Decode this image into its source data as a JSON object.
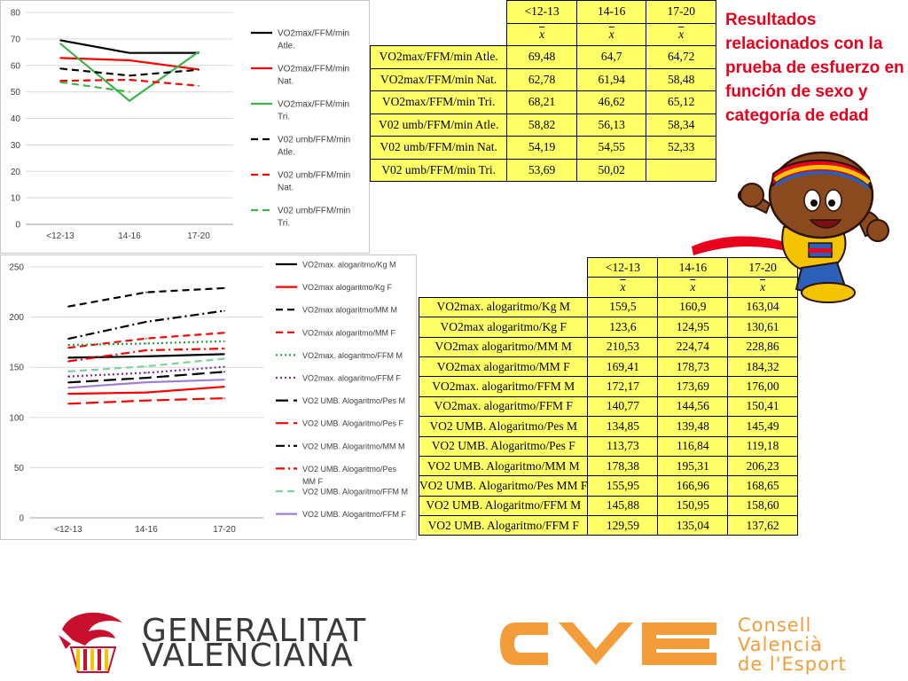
{
  "headline": "Resultados relacionados con la prueba de esfuerzo en función de sexo y categoría de edad",
  "xbar_symbol": "x",
  "colors": {
    "header_fill": "#ffff66",
    "headline": "#e8001c",
    "cve_orange": "#f39c3a"
  },
  "chart_data": [
    {
      "type": "line",
      "categories": [
        "<12-13",
        "14-16",
        "17-20"
      ],
      "ylim": [
        0,
        80
      ],
      "yticks": [
        "0",
        "10",
        "20",
        "30",
        "40",
        "50",
        "60",
        "70",
        "80"
      ],
      "grid": true,
      "legend_position": "right",
      "series": [
        {
          "name": "VO2max/FFM/min Atle.",
          "values": [
            69.48,
            64.7,
            64.72
          ],
          "color": "#000000",
          "dash": "solid"
        },
        {
          "name": "VO2max/FFM/min Nat.",
          "values": [
            62.78,
            61.94,
            58.48
          ],
          "color": "#ff0000",
          "dash": "solid"
        },
        {
          "name": "VO2max/FFM/min Tri.",
          "values": [
            68.21,
            46.62,
            65.12
          ],
          "color": "#3cb44b",
          "dash": "solid"
        },
        {
          "name": "V02 umb/FFM/min Atle.",
          "values": [
            58.82,
            56.13,
            58.34
          ],
          "color": "#000000",
          "dash": "dash"
        },
        {
          "name": "V02 umb/FFM/min Nat.",
          "values": [
            54.19,
            54.55,
            52.33
          ],
          "color": "#ff0000",
          "dash": "dash"
        },
        {
          "name": "V02 umb/FFM/min Tri.",
          "values": [
            53.69,
            50.02,
            null
          ],
          "color": "#3cb44b",
          "dash": "dash"
        }
      ]
    },
    {
      "type": "line",
      "categories": [
        "<12-13",
        "14-16",
        "17-20"
      ],
      "ylim": [
        0,
        250
      ],
      "yticks": [
        "0",
        "50",
        "100",
        "150",
        "200",
        "250"
      ],
      "grid": true,
      "legend_position": "right",
      "series": [
        {
          "name": "VO2max. alogaritmo/Kg M",
          "values": [
            159.5,
            160.9,
            163.04
          ],
          "color": "#000000",
          "dash": "solid"
        },
        {
          "name": "VO2max alogaritmo/Kg F",
          "values": [
            123.6,
            124.95,
            130.61
          ],
          "color": "#ff0000",
          "dash": "solid"
        },
        {
          "name": "VO2max alogaritmo/MM M",
          "values": [
            210.53,
            224.74,
            228.86
          ],
          "color": "#000000",
          "dash": "dash"
        },
        {
          "name": "VO2max alogaritmo/MM F",
          "values": [
            169.41,
            178.73,
            184.32
          ],
          "color": "#ff0000",
          "dash": "dash"
        },
        {
          "name": "VO2max. alogaritmo/FFM M",
          "values": [
            172.17,
            173.69,
            176.0
          ],
          "color": "#2ea043",
          "dash": "dot"
        },
        {
          "name": "VO2max. alogaritmo/FFM F",
          "values": [
            140.77,
            144.56,
            150.41
          ],
          "color": "#7030a0",
          "dash": "dot"
        },
        {
          "name": "VO2 UMB. Alogaritmo/Pes M",
          "values": [
            134.85,
            139.48,
            145.49
          ],
          "color": "#000000",
          "dash": "longdash"
        },
        {
          "name": "VO2 UMB. Alogaritmo/Pes F",
          "values": [
            113.73,
            116.84,
            119.18
          ],
          "color": "#ff0000",
          "dash": "longdash"
        },
        {
          "name": "VO2 UMB. Alogaritmo/MM M",
          "values": [
            178.38,
            195.31,
            206.23
          ],
          "color": "#000000",
          "dash": "dashdot"
        },
        {
          "name": "VO2 UMB. Alogaritmo/Pes MM F",
          "values": [
            155.95,
            166.96,
            168.65
          ],
          "color": "#ff0000",
          "dash": "dashdot"
        },
        {
          "name": "VO2 UMB. Alogaritmo/FFM M",
          "values": [
            145.88,
            150.95,
            158.6
          ],
          "color": "#7fd39a",
          "dash": "dash"
        },
        {
          "name": "VO2 UMB. Alogaritmo/FFM F",
          "values": [
            129.59,
            135.04,
            137.62
          ],
          "color": "#9f7fd1",
          "dash": "solid"
        }
      ]
    }
  ],
  "chart1_legend": [
    [
      "VO2max/FFM/min",
      "Atle."
    ],
    [
      "VO2max/FFM/min",
      "Nat."
    ],
    [
      "VO2max/FFM/min",
      "Tri."
    ],
    [
      "V02 umb/FFM/min",
      "Atle."
    ],
    [
      "V02 umb/FFM/min",
      "Nat."
    ],
    [
      "V02 umb/FFM/min",
      "Tri."
    ]
  ],
  "chart2_legend": [
    [
      "VO2max. alogaritmo/Kg M"
    ],
    [
      "VO2max alogaritmo/Kg F"
    ],
    [
      "VO2max alogaritmo/MM M"
    ],
    [
      "VO2max alogaritmo/MM F"
    ],
    [
      "VO2max. alogaritmo/FFM M"
    ],
    [
      "VO2max. alogaritmo/FFM F"
    ],
    [
      "VO2 UMB. Alogaritmo/Pes M"
    ],
    [
      "VO2 UMB. Alogaritmo/Pes F"
    ],
    [
      "VO2 UMB. Alogaritmo/MM M"
    ],
    [
      "VO2 UMB. Alogaritmo/Pes",
      "MM F"
    ],
    [
      "VO2 UMB. Alogaritmo/FFM M"
    ],
    [
      "VO2 UMB. Alogaritmo/FFM F"
    ]
  ],
  "table1": {
    "headers": [
      "<12-13",
      "14-16",
      "17-20"
    ],
    "rows": [
      {
        "label": "VO2max/FFM/min Atle.",
        "values": [
          "69,48",
          "64,7",
          "64,72"
        ]
      },
      {
        "label": "VO2max/FFM/min Nat.",
        "values": [
          "62,78",
          "61,94",
          "58,48"
        ]
      },
      {
        "label": "VO2max/FFM/min Tri.",
        "values": [
          "68,21",
          "46,62",
          "65,12"
        ]
      },
      {
        "label": "V02 umb/FFM/min Atle.",
        "values": [
          "58,82",
          "56,13",
          "58,34"
        ]
      },
      {
        "label": "V02 umb/FFM/min Nat.",
        "values": [
          "54,19",
          "54,55",
          "52,33"
        ]
      },
      {
        "label": "V02 umb/FFM/min Tri.",
        "values": [
          "53,69",
          "50,02",
          ""
        ]
      }
    ]
  },
  "table2": {
    "headers": [
      "<12-13",
      "14-16",
      "17-20"
    ],
    "rows": [
      {
        "label": "VO2max. alogaritmo/Kg M",
        "values": [
          "159,5",
          "160,9",
          "163,04"
        ]
      },
      {
        "label": "VO2max alogaritmo/Kg F",
        "values": [
          "123,6",
          "124,95",
          "130,61"
        ]
      },
      {
        "label": "VO2max alogaritmo/MM M",
        "values": [
          "210,53",
          "224,74",
          "228,86"
        ]
      },
      {
        "label": "VO2max alogaritmo/MM F",
        "values": [
          "169,41",
          "178,73",
          "184,32"
        ]
      },
      {
        "label": "VO2max. alogaritmo/FFM M",
        "values": [
          "172,17",
          "173,69",
          "176,00"
        ]
      },
      {
        "label": "VO2max. alogaritmo/FFM F",
        "values": [
          "140,77",
          "144,56",
          "150,41"
        ]
      },
      {
        "label": "VO2 UMB. Alogaritmo/Pes M",
        "values": [
          "134,85",
          "139,48",
          "145,49"
        ]
      },
      {
        "label": "VO2 UMB. Alogaritmo/Pes F",
        "values": [
          "113,73",
          "116,84",
          "119,18"
        ]
      },
      {
        "label": "VO2 UMB. Alogaritmo/MM M",
        "values": [
          "178,38",
          "195,31",
          "206,23"
        ]
      },
      {
        "label": "VO2 UMB. Alogaritmo/Pes MM F",
        "values": [
          "155,95",
          "166,96",
          "168,65"
        ]
      },
      {
        "label": "VO2 UMB. Alogaritmo/FFM M",
        "values": [
          "145,88",
          "150,95",
          "158,60"
        ]
      },
      {
        "label": "VO2 UMB. Alogaritmo/FFM F",
        "values": [
          "129,59",
          "135,04",
          "137,62"
        ]
      }
    ]
  },
  "logos": {
    "gva_line1": "GENERALITAT",
    "gva_line2": "VALENCIANA",
    "cve_line1": "Consell",
    "cve_line2": "Valencià",
    "cve_line3": "de l'Esport",
    "cve_mark": "CVE"
  }
}
